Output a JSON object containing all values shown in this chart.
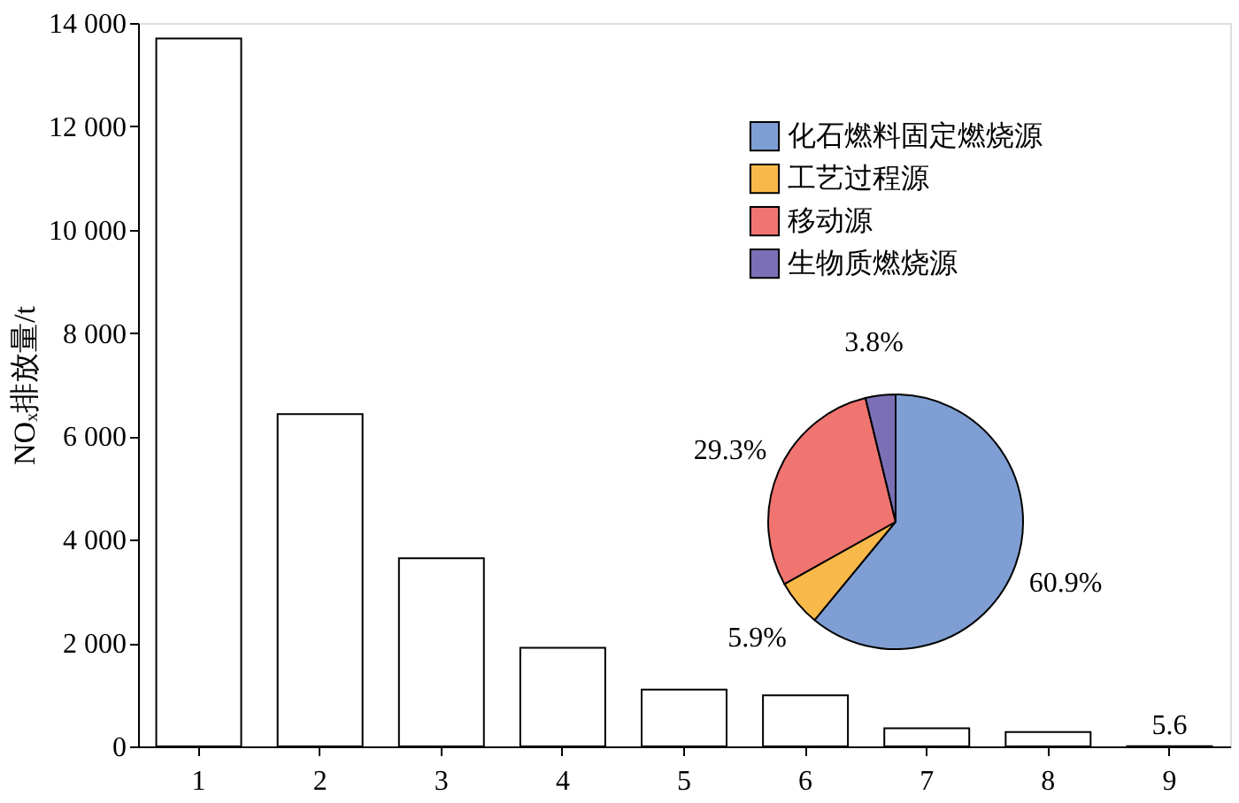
{
  "chart_data": [
    {
      "type": "bar",
      "ylabel": "NOₓ排放量/t",
      "categories": [
        "1",
        "2",
        "3",
        "4",
        "5",
        "6",
        "7",
        "8",
        "9"
      ],
      "values": [
        13700,
        6430,
        3640,
        1910,
        1100,
        990,
        350,
        280,
        5.6
      ],
      "value_labels": [
        null,
        null,
        null,
        null,
        null,
        null,
        null,
        null,
        "5.6"
      ],
      "color": "#ffffff",
      "ylim": [
        0,
        14000
      ],
      "yticks": [
        0,
        {
          "value": 2000,
          "label": "2 000"
        },
        {
          "value": 4000,
          "label": "4 000"
        },
        {
          "value": 6000,
          "label": "6 000"
        },
        {
          "value": 8000,
          "label": "8 000"
        },
        {
          "value": 10000,
          "label": "10 000"
        },
        {
          "value": 12000,
          "label": "12 000"
        },
        {
          "value": 14000,
          "label": "14 000"
        }
      ],
      "grid": false
    },
    {
      "type": "pie",
      "categories": [
        "化石燃料固定燃烧源",
        "工艺过程源",
        "移动源",
        "生物质燃烧源"
      ],
      "values": [
        60.9,
        5.9,
        29.3,
        3.8
      ],
      "colors": [
        "#7f9fd4",
        "#f9b94a",
        "#f07470",
        "#7b6fb5"
      ],
      "value_labels": [
        "60.9%",
        "5.9%",
        "29.3%",
        "3.8%"
      ],
      "legend": "top right"
    }
  ]
}
